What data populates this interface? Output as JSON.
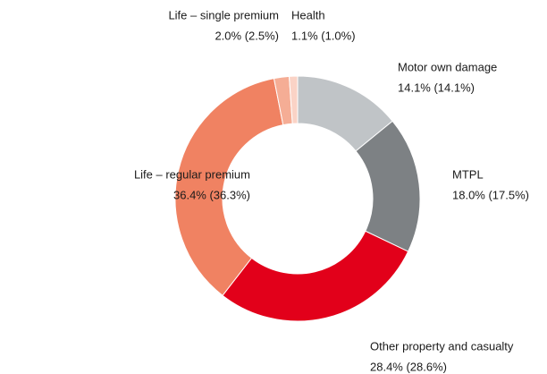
{
  "chart_data": {
    "type": "donut",
    "categories": [
      "Motor own damage",
      "MTPL",
      "Other property and casualty",
      "Life – regular premium",
      "Life – single premium",
      "Health"
    ],
    "values": [
      14.1,
      18.0,
      28.4,
      36.4,
      2.0,
      1.1
    ],
    "value_labels": [
      "14.1% (14.1%)",
      "18.0% (17.5%)",
      "28.4% (28.6%)",
      "36.4% (36.3%)",
      "2.0% (2.5%)",
      "1.1% (1.0%)"
    ],
    "colors": [
      "#c0c4c7",
      "#7d8184",
      "#e2001a",
      "#f08262",
      "#f5ad95",
      "#fad3c6"
    ]
  }
}
